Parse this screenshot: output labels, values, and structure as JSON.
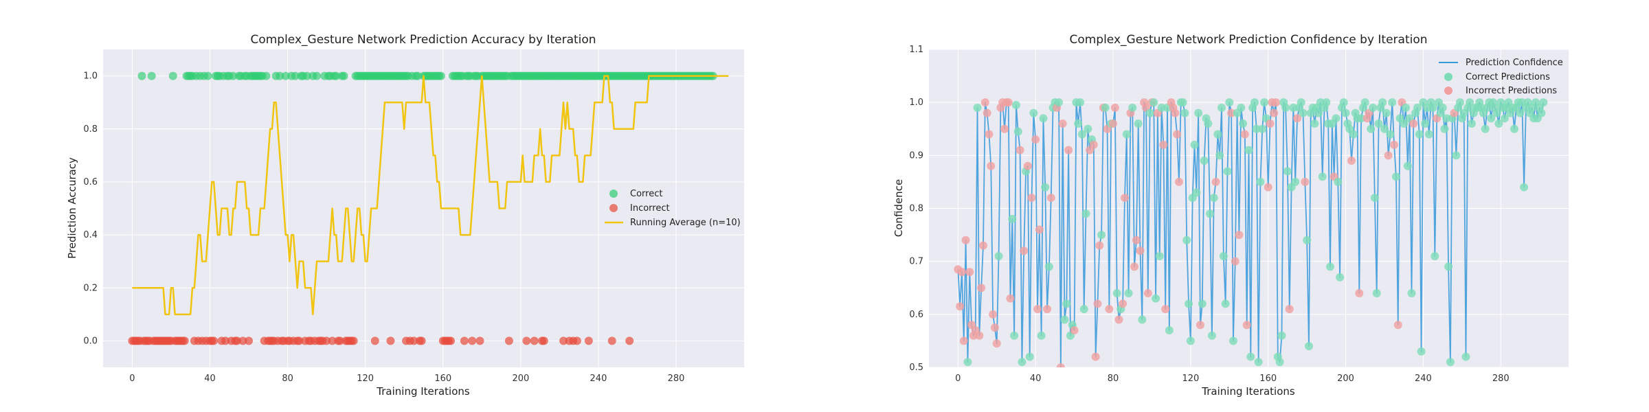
{
  "colors": {
    "plot_bg": "#eaeaf2",
    "grid": "#ffffff",
    "correct": "#2ecc71",
    "incorrect": "#e74c3c",
    "running_avg": "#f1c40f",
    "confidence_line": "#3498db",
    "correct_marker": "#7ddcb6",
    "incorrect_marker": "#f0a0a0"
  },
  "chart_data": [
    {
      "type": "scatter",
      "title": "Complex_Gesture Network Prediction Accuracy by Iteration",
      "xlabel": "Training Iterations",
      "ylabel": "Prediction Accuracy",
      "xlim": [
        -15,
        315
      ],
      "ylim": [
        -0.1,
        1.1
      ],
      "xticks": [
        "0",
        "40",
        "80",
        "120",
        "160",
        "200",
        "240",
        "280"
      ],
      "yticks": [
        "0.0",
        "0.2",
        "0.4",
        "0.6",
        "0.8",
        "1.0"
      ],
      "legend": [
        "Correct",
        "Incorrect",
        "Running Average (n=10)"
      ],
      "legend_position": "center-right",
      "correct_iterations": [
        5,
        10,
        21,
        28,
        29,
        30,
        31,
        33,
        35,
        37,
        39,
        43,
        44,
        45,
        47,
        49,
        50,
        52,
        55,
        56,
        58,
        59,
        61,
        62,
        63,
        64,
        65,
        66,
        67,
        69,
        74,
        76,
        79,
        82,
        84,
        87,
        88,
        90,
        93,
        95,
        99,
        101,
        102,
        104,
        105,
        108,
        109,
        115,
        116,
        117,
        118,
        119,
        120,
        121,
        122,
        123,
        124,
        125,
        126,
        127,
        128,
        129,
        130,
        131,
        132,
        133,
        134,
        135,
        136,
        137,
        138,
        139,
        140,
        141,
        142,
        144,
        146,
        147,
        150,
        151,
        152,
        153,
        154,
        155,
        156,
        157,
        158,
        159,
        165,
        166,
        167,
        168,
        169,
        170,
        172,
        173,
        174,
        176,
        177,
        178,
        180,
        181,
        182,
        183,
        184,
        185,
        186,
        187,
        188,
        189,
        190,
        191,
        192,
        193,
        195,
        196,
        197,
        198,
        199,
        200,
        201,
        202,
        203,
        204,
        205,
        206,
        207,
        208,
        209,
        210,
        211,
        212,
        213,
        214,
        215,
        216,
        217,
        218,
        219,
        220,
        221,
        222,
        223,
        224,
        225,
        226,
        227,
        228,
        229,
        230,
        231,
        232,
        233,
        234,
        235,
        236,
        237,
        238,
        239,
        240,
        241,
        242,
        243,
        244,
        245,
        246,
        247,
        248,
        249,
        250,
        251,
        252,
        253,
        254,
        255,
        256,
        257,
        258,
        259,
        260,
        261,
        262,
        263,
        264,
        265,
        266,
        267,
        268,
        269,
        270,
        271,
        272,
        273,
        274,
        275,
        276,
        277,
        278,
        279,
        280,
        281,
        282,
        283,
        284,
        285,
        286,
        287,
        288,
        289,
        290,
        291,
        292,
        293,
        294,
        295,
        296,
        297,
        298,
        299
      ],
      "incorrect_iterations": [
        0,
        1,
        2,
        3,
        4,
        6,
        7,
        8,
        9,
        11,
        12,
        13,
        14,
        15,
        16,
        17,
        18,
        19,
        20,
        22,
        23,
        24,
        25,
        26,
        27,
        32,
        34,
        36,
        38,
        40,
        41,
        42,
        46,
        48,
        51,
        53,
        54,
        57,
        60,
        68,
        70,
        71,
        72,
        73,
        75,
        77,
        78,
        80,
        81,
        83,
        85,
        86,
        89,
        91,
        92,
        94,
        96,
        97,
        98,
        100,
        103,
        106,
        107,
        110,
        111,
        112,
        113,
        114,
        125,
        133,
        141,
        143,
        145,
        148,
        149,
        160,
        161,
        162,
        163,
        164,
        171,
        175,
        179,
        194,
        203,
        207,
        211,
        212,
        222,
        225,
        227,
        229,
        235,
        247,
        256
      ],
      "running_average": [
        0.2,
        0.2,
        0.2,
        0.2,
        0.2,
        0.2,
        0.2,
        0.2,
        0.2,
        0.2,
        0.2,
        0.2,
        0.2,
        0.2,
        0.2,
        0.2,
        0.2,
        0.1,
        0.1,
        0.1,
        0.2,
        0.2,
        0.1,
        0.1,
        0.1,
        0.1,
        0.1,
        0.1,
        0.1,
        0.1,
        0.1,
        0.2,
        0.2,
        0.3,
        0.4,
        0.4,
        0.3,
        0.3,
        0.3,
        0.4,
        0.5,
        0.6,
        0.6,
        0.5,
        0.4,
        0.4,
        0.5,
        0.5,
        0.5,
        0.5,
        0.4,
        0.4,
        0.5,
        0.5,
        0.6,
        0.6,
        0.6,
        0.6,
        0.6,
        0.5,
        0.5,
        0.4,
        0.4,
        0.4,
        0.4,
        0.4,
        0.5,
        0.5,
        0.5,
        0.6,
        0.7,
        0.8,
        0.8,
        0.9,
        0.9,
        0.8,
        0.7,
        0.6,
        0.5,
        0.4,
        0.4,
        0.3,
        0.4,
        0.4,
        0.3,
        0.2,
        0.3,
        0.3,
        0.3,
        0.2,
        0.2,
        0.2,
        0.2,
        0.1,
        0.2,
        0.3,
        0.3,
        0.3,
        0.3,
        0.3,
        0.3,
        0.3,
        0.4,
        0.5,
        0.4,
        0.4,
        0.3,
        0.3,
        0.3,
        0.4,
        0.5,
        0.5,
        0.4,
        0.3,
        0.3,
        0.4,
        0.5,
        0.5,
        0.4,
        0.4,
        0.3,
        0.3,
        0.4,
        0.5,
        0.5,
        0.5,
        0.5,
        0.6,
        0.7,
        0.8,
        0.9,
        0.9,
        0.9,
        0.9,
        0.9,
        0.9,
        0.9,
        0.9,
        0.9,
        0.9,
        0.8,
        0.9,
        0.9,
        0.9,
        0.9,
        0.9,
        0.9,
        0.9,
        0.9,
        0.9,
        1.0,
        0.9,
        0.9,
        0.9,
        0.8,
        0.7,
        0.7,
        0.6,
        0.6,
        0.5,
        0.5,
        0.5,
        0.5,
        0.5,
        0.5,
        0.5,
        0.5,
        0.5,
        0.5,
        0.4,
        0.4,
        0.4,
        0.4,
        0.4,
        0.4,
        0.5,
        0.6,
        0.7,
        0.8,
        0.9,
        1.0,
        0.9,
        0.8,
        0.7,
        0.6,
        0.6,
        0.6,
        0.6,
        0.6,
        0.5,
        0.5,
        0.5,
        0.5,
        0.6,
        0.6,
        0.6,
        0.6,
        0.6,
        0.6,
        0.6,
        0.6,
        0.7,
        0.6,
        0.6,
        0.6,
        0.6,
        0.6,
        0.7,
        0.7,
        0.7,
        0.8,
        0.7,
        0.7,
        0.6,
        0.6,
        0.6,
        0.7,
        0.7,
        0.7,
        0.7,
        0.7,
        0.8,
        0.9,
        0.8,
        0.9,
        0.8,
        0.8,
        0.8,
        0.7,
        0.7,
        0.6,
        0.6,
        0.6,
        0.7,
        0.7,
        0.7,
        0.7,
        0.8,
        0.9,
        0.9,
        0.9,
        0.9,
        0.9,
        1.0,
        1.0,
        1.0,
        0.9,
        0.9,
        0.8,
        0.8,
        0.8,
        0.8,
        0.8,
        0.8,
        0.8,
        0.8,
        0.8,
        0.8,
        0.8,
        0.9,
        0.9,
        0.9,
        0.9,
        0.9,
        0.9,
        0.9,
        1.0,
        1.0,
        1.0,
        1.0,
        1.0,
        1.0,
        1.0,
        1.0,
        1.0,
        1.0,
        1.0,
        1.0,
        1.0,
        1.0,
        1.0,
        1.0,
        1.0,
        1.0,
        1.0,
        1.0,
        1.0,
        1.0,
        1.0,
        1.0,
        1.0,
        1.0,
        1.0,
        1.0,
        1.0,
        1.0,
        1.0,
        1.0,
        1.0,
        1.0,
        1.0,
        1.0,
        1.0,
        1.0,
        1.0,
        1.0,
        1.0,
        1.0
      ]
    },
    {
      "type": "line",
      "title": "Complex_Gesture Network Prediction Confidence by Iteration",
      "xlabel": "Training Iterations",
      "ylabel": "Confidence",
      "xlim": [
        -15,
        315
      ],
      "ylim": [
        0.5,
        1.1
      ],
      "xticks": [
        "0",
        "40",
        "80",
        "120",
        "160",
        "200",
        "240",
        "280"
      ],
      "yticks": [
        "0.5",
        "0.6",
        "0.7",
        "0.8",
        "0.9",
        "1.0",
        "1.1"
      ],
      "legend": [
        "Prediction Confidence",
        "Correct Predictions",
        "Incorrect Predictions"
      ],
      "legend_position": "top-right",
      "confidence": [
        0.685,
        0.615,
        0.68,
        0.55,
        0.74,
        0.51,
        0.68,
        0.58,
        0.56,
        0.57,
        0.99,
        0.56,
        0.65,
        0.73,
        1.0,
        0.98,
        0.94,
        0.88,
        0.6,
        0.575,
        0.545,
        0.71,
        0.99,
        1.0,
        0.95,
        1.0,
        1.0,
        0.63,
        0.78,
        0.56,
        0.995,
        0.945,
        0.91,
        0.51,
        0.72,
        0.87,
        0.88,
        0.52,
        0.82,
        0.98,
        0.93,
        0.61,
        0.76,
        0.56,
        0.97,
        0.84,
        0.61,
        0.69,
        0.82,
        0.99,
        1.0,
        0.99,
        1.0,
        0.5,
        0.96,
        0.59,
        0.62,
        0.91,
        0.56,
        0.58,
        0.57,
        1.0,
        0.96,
        1.0,
        0.94,
        0.61,
        0.79,
        0.95,
        0.91,
        0.93,
        0.92,
        0.52,
        0.62,
        0.73,
        0.75,
        0.99,
        0.99,
        0.95,
        0.61,
        0.96,
        0.96,
        0.99,
        0.64,
        0.59,
        0.61,
        0.62,
        0.82,
        0.94,
        0.64,
        0.98,
        0.99,
        0.69,
        0.74,
        0.96,
        0.72,
        0.59,
        1.0,
        0.99,
        0.64,
        0.98,
        1.0,
        1.0,
        0.63,
        0.98,
        0.71,
        0.99,
        0.92,
        0.61,
        0.99,
        0.57,
        1.0,
        0.99,
        0.98,
        0.94,
        0.85,
        1.0,
        1.0,
        0.98,
        0.74,
        0.62,
        0.55,
        0.82,
        0.92,
        0.83,
        0.98,
        0.58,
        0.62,
        0.89,
        0.97,
        0.96,
        0.79,
        0.56,
        0.82,
        0.85,
        0.94,
        0.9,
        0.99,
        0.71,
        0.62,
        0.87,
        1.0,
        0.98,
        0.55,
        0.7,
        0.98,
        0.75,
        0.99,
        0.96,
        0.94,
        0.58,
        0.91,
        0.52,
        0.99,
        1.0,
        0.95,
        0.51,
        0.85,
        0.95,
        1.0,
        0.97,
        0.84,
        0.96,
        1.0,
        0.98,
        1.0,
        0.52,
        0.51,
        0.56,
        1.0,
        0.99,
        0.87,
        0.61,
        0.84,
        0.99,
        0.85,
        0.97,
        0.99,
        1.0,
        0.98,
        0.85,
        0.74,
        0.54,
        0.98,
        0.99,
        0.96,
        0.99,
        0.98,
        1.0,
        0.86,
        0.99,
        1.0,
        0.96,
        0.69,
        0.96,
        0.86,
        0.97,
        0.85,
        0.67,
        0.99,
        1.0,
        0.98,
        0.96,
        0.95,
        0.89,
        0.94,
        0.98,
        0.97,
        0.64,
        0.97,
        0.99,
        1.0,
        0.97,
        0.98,
        0.95,
        0.99,
        0.82,
        0.64,
        0.96,
        0.99,
        1.0,
        0.95,
        0.98,
        0.9,
        0.94,
        1.0,
        0.92,
        0.86,
        0.58,
        0.97,
        1.0,
        0.96,
        0.99,
        0.88,
        0.97,
        0.64,
        0.96,
        0.98,
        0.99,
        0.94,
        0.53,
        1.0,
        0.96,
        0.99,
        0.94,
        1.0,
        0.99,
        0.71,
        0.97,
        1.0,
        0.98,
        0.99,
        0.95,
        0.97,
        0.69,
        0.51,
        0.97,
        0.98,
        0.9,
        0.99,
        1.0,
        0.97,
        0.98,
        0.52,
        0.99,
        1.0,
        0.96,
        0.98,
        0.99,
        0.99,
        1.0,
        0.99,
        0.98,
        0.95,
        0.99,
        1.0,
        0.97,
        1.0,
        0.99,
        0.98,
        0.96,
        1.0,
        0.99,
        0.97,
        0.99,
        1.0,
        0.98,
        0.99,
        0.95,
        0.99,
        1.0,
        0.98,
        1.0,
        0.84,
        0.99,
        1.0,
        0.98,
        0.99,
        0.97,
        1.0,
        0.97,
        0.99,
        0.98,
        1.0
      ],
      "correct_iterations_ref": "chart_data.0.correct_iterations",
      "incorrect_iterations_ref": "chart_data.0.incorrect_iterations"
    }
  ]
}
